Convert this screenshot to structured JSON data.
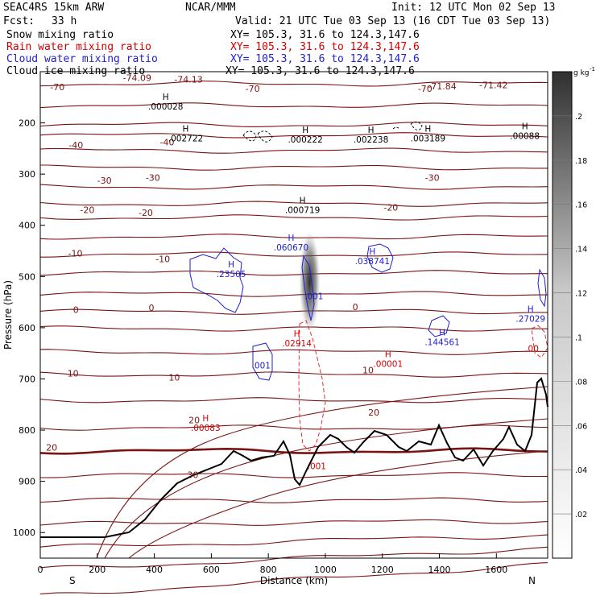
{
  "header": {
    "model": "SEAC4RS 15km ARW",
    "org": "NCAR/MMM",
    "init": "Init: 12 UTC Mon 02 Sep 13",
    "fcst_label": "Fcst:",
    "fcst_value": "33 h",
    "valid": "Valid: 21 UTC Tue 03 Sep 13 (16 CDT Tue 03 Sep 13)"
  },
  "fields": [
    {
      "name": "Snow mixing ratio",
      "xy": "XY= 105.3, 31.6 to 124.3,147.6",
      "color": "#000000"
    },
    {
      "name": "Rain water mixing ratio",
      "xy": "XY= 105.3, 31.6 to 124.3,147.6",
      "color": "#d40000"
    },
    {
      "name": "Cloud water mixing ratio",
      "xy": "XY= 105.3, 31.6 to 124.3,147.6",
      "color": "#1e1ed2"
    },
    {
      "name": "Cloud ice mixing ratio",
      "xy": "XY= 105.3, 31.6 to 124.3,147.6",
      "color": "#000000"
    }
  ],
  "chart_data": {
    "type": "cross-section",
    "xlabel": "Distance (km)",
    "ylabel": "Pressure (hPa)",
    "xlim": [
      0,
      1780
    ],
    "ylim": [
      1050,
      100
    ],
    "x_ticks": [
      "0",
      "200",
      "400",
      "600",
      "800",
      "1000",
      "1200",
      "1400",
      "1600"
    ],
    "y_ticks": [
      "200",
      "300",
      "400",
      "500",
      "600",
      "700",
      "800",
      "900",
      "1000"
    ],
    "end_labels": {
      "left": "S",
      "right": "N"
    },
    "colorbar": {
      "unit": "g kg",
      "unit_sup": "-1",
      "ticks": [
        ".02",
        ".04",
        ".06",
        ".08",
        ".1",
        ".12",
        ".14",
        ".16",
        ".18",
        ".2"
      ]
    },
    "temperature_labels": [
      {
        "text": "-70",
        "x": 60,
        "p": 130
      },
      {
        "text": "-70",
        "x": 745,
        "p": 133
      },
      {
        "text": "-70",
        "x": 1350,
        "p": 133
      },
      {
        "text": "-40",
        "x": 125,
        "p": 243
      },
      {
        "text": "-40",
        "x": 445,
        "p": 238
      },
      {
        "text": "-30",
        "x": 225,
        "p": 312
      },
      {
        "text": "-30",
        "x": 395,
        "p": 307
      },
      {
        "text": "-30",
        "x": 1375,
        "p": 307
      },
      {
        "text": "-20",
        "x": 165,
        "p": 370
      },
      {
        "text": "-20",
        "x": 370,
        "p": 375
      },
      {
        "text": "-20",
        "x": 1230,
        "p": 365
      },
      {
        "text": "-10",
        "x": 123,
        "p": 455
      },
      {
        "text": "-10",
        "x": 430,
        "p": 466
      },
      {
        "text": "0",
        "x": 125,
        "p": 565
      },
      {
        "text": "0",
        "x": 390,
        "p": 561
      },
      {
        "text": "0",
        "x": 1105,
        "p": 559
      },
      {
        "text": "10",
        "x": 115,
        "p": 689
      },
      {
        "text": "10",
        "x": 470,
        "p": 697
      },
      {
        "text": "10",
        "x": 1150,
        "p": 683
      },
      {
        "text": "20",
        "x": 40,
        "p": 834
      },
      {
        "text": "20",
        "x": 540,
        "p": 780
      },
      {
        "text": "20",
        "x": 1170,
        "p": 765
      },
      {
        "text": "30",
        "x": 535,
        "p": 887
      },
      {
        "text": "-74.09",
        "x": 340,
        "p": 112
      },
      {
        "text": "-74.13",
        "x": 520,
        "p": 115
      },
      {
        "text": "-71.84",
        "x": 1410,
        "p": 128
      },
      {
        "text": "-71.42",
        "x": 1590,
        "p": 126
      }
    ],
    "maxima": [
      {
        "label": "H",
        "value": ".000028",
        "x": 440,
        "p": 168,
        "field": "snow"
      },
      {
        "label": "H",
        "value": ".002722",
        "x": 510,
        "p": 230,
        "field": "snow"
      },
      {
        "label": "H",
        "value": ".000222",
        "x": 930,
        "p": 232,
        "field": "snow"
      },
      {
        "label": "H",
        "value": ".002238",
        "x": 1160,
        "p": 232,
        "field": "snow"
      },
      {
        "label": "H",
        "value": ".003189",
        "x": 1360,
        "p": 230,
        "field": "snow"
      },
      {
        "label": "H",
        "value": ".00088",
        "x": 1700,
        "p": 225,
        "field": "snow"
      },
      {
        "label": "H",
        "value": ".000719",
        "x": 920,
        "p": 370,
        "field": "snow"
      },
      {
        "label": "H",
        "value": ".060670",
        "x": 880,
        "p": 443,
        "field": "cloud_water"
      },
      {
        "label": "H",
        "value": ".23505",
        "x": 670,
        "p": 495,
        "field": "cloud_water"
      },
      {
        "label": "",
        "value": ".001",
        "x": 960,
        "p": 538,
        "field": "cloud_water"
      },
      {
        "label": "H",
        "value": ".038741",
        "x": 1165,
        "p": 470,
        "field": "cloud_water"
      },
      {
        "label": "H",
        "value": ".27029",
        "x": 1720,
        "p": 582,
        "field": "cloud_water"
      },
      {
        "label": "H",
        "value": ".144561",
        "x": 1410,
        "p": 628,
        "field": "cloud_water"
      },
      {
        "label": "",
        "value": ".001",
        "x": 775,
        "p": 673,
        "field": "cloud_water"
      },
      {
        "label": "H",
        "value": ".02914",
        "x": 900,
        "p": 630,
        "field": "rain"
      },
      {
        "label": "H",
        "value": ".00001",
        "x": 1220,
        "p": 670,
        "field": "rain"
      },
      {
        "label": "H",
        "value": ".00083",
        "x": 580,
        "p": 795,
        "field": "rain"
      },
      {
        "label": "",
        "value": ".00",
        "x": 1725,
        "p": 640,
        "field": "rain"
      },
      {
        "label": "",
        "value": ".001",
        "x": 970,
        "p": 870,
        "field": "rain"
      }
    ]
  }
}
